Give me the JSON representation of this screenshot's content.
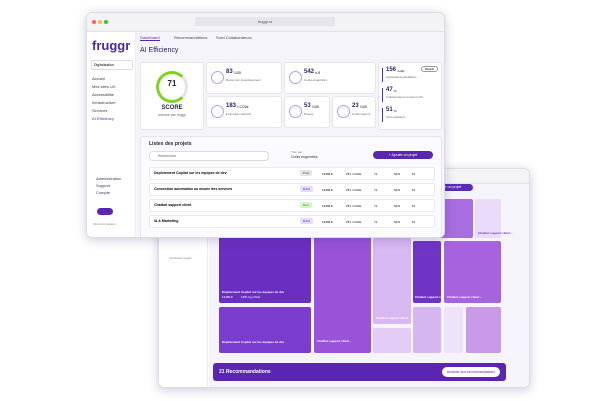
{
  "back_window": {
    "add_button": "+ Ajouter un projet",
    "sidebar_text": "Ventilation légale",
    "tiles": [
      "Déploiement Copilot sur les équipes de dev",
      "Déploiement Copilot sur les équipes de dev",
      "Chatbot support client...",
      "Chatbot support client...",
      "Chatbot support client...",
      "Chatbot support client...",
      "Chatbot support client..."
    ],
    "tile_metrics": [
      "13486 €",
      "1251 kg CO2e"
    ],
    "banner": {
      "count": "21 Recommandations",
      "button": "Accéder aux recommandations"
    }
  },
  "front_window": {
    "url": "fruggr.io",
    "logo": "fruggr",
    "selector": "Digitalisation",
    "nav": [
      "Accueil",
      "Mes sites UX",
      "Accessibilité",
      "Infrastructure",
      "Services",
      "AI Efficiency"
    ],
    "bottom_nav": [
      "Administration",
      "Support",
      "Compte"
    ],
    "footer": "Mentions légales",
    "tabs": [
      "Dashboard",
      "Recommandations",
      "Suivi Collaborateurs"
    ],
    "title": "AI Efficiency",
    "score": {
      "value": "71",
      "label": "SCORE",
      "sub": "mesuré par fruggr"
    },
    "metrics": [
      {
        "value": "83",
        "unit": "/100",
        "label": "Retour sur investissement"
      },
      {
        "value": "542",
        "unit": "k €",
        "label": "Coûts engendrés"
      },
      {
        "value": "183",
        "unit": "t CO2e",
        "label": "Empreinte carbone"
      },
      {
        "value": "53",
        "unit": "/100",
        "label": "Projets"
      },
      {
        "value": "23",
        "unit": "/100",
        "label": "Conformité IA"
      }
    ],
    "side_metrics": {
      "button": "Détails",
      "items": [
        {
          "value": "156",
          "unit": "outils",
          "label": "Applications identifiées"
        },
        {
          "value": "47",
          "unit": "%",
          "label": "Collaborateurs formés à l'IA"
        },
        {
          "value": "51",
          "unit": "%",
          "label": "Sous-traitance"
        }
      ]
    },
    "projects": {
      "title": "Listes des projets",
      "search": "Rechercher",
      "sort_label": "Trier par",
      "sort_value": "Coûts engendrés",
      "add_button": "+ Ajouter un projet",
      "rows": [
        {
          "name": "Déploiement Copilot sur les équipes de dev",
          "phase": "Prep",
          "cost": "13486 €",
          "carbon": "251 t CO2e",
          "score": "71",
          "pct": "52%",
          "n": "67"
        },
        {
          "name": "Connection automation au musée des services",
          "phase": "Build",
          "cost": "13486 €",
          "carbon": "251 t CO2e",
          "score": "71",
          "pct": "52%",
          "n": "67"
        },
        {
          "name": "Chatbot support client",
          "phase": "Run",
          "cost": "13486 €",
          "carbon": "251 t CO2e",
          "score": "71",
          "pct": "52%",
          "n": "67"
        },
        {
          "name": "IA & Marketing",
          "phase": "Build",
          "cost": "13486 €",
          "carbon": "251 t CO2e",
          "score": "71",
          "pct": "52%",
          "n": "67"
        }
      ]
    }
  }
}
